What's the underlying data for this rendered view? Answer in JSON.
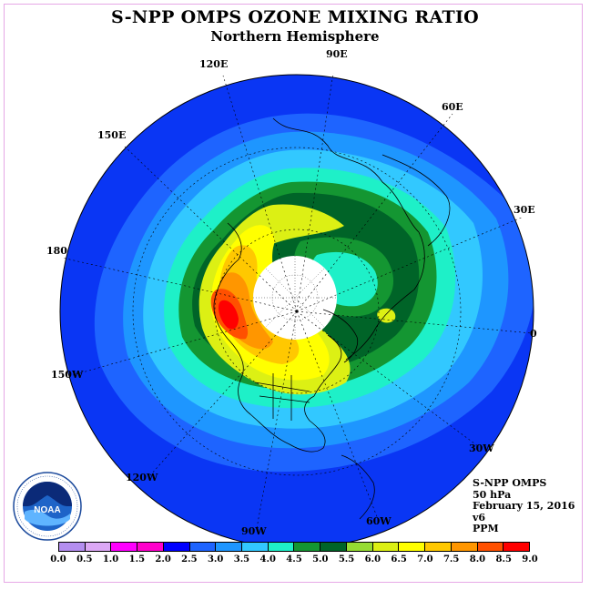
{
  "title": "S-NPP OMPS OZONE MIXING RATIO",
  "subtitle": "Northern Hemisphere",
  "longitude_labels": [
    "120E",
    "90E",
    "60E",
    "150E",
    "30E",
    "180",
    "0",
    "150W",
    "30W",
    "120W",
    "60W",
    "90W"
  ],
  "info": {
    "instrument": "S-NPP OMPS",
    "level": "50 hPa",
    "date": "February 15, 2016",
    "version": "v6",
    "units": "PPM"
  },
  "logo": {
    "text": "NOAA",
    "icon": "noaa-logo"
  },
  "colorbar": {
    "ticks": [
      "0.0",
      "0.5",
      "1.0",
      "1.5",
      "2.0",
      "2.5",
      "3.0",
      "3.5",
      "4.0",
      "4.5",
      "5.0",
      "5.5",
      "6.0",
      "6.5",
      "7.0",
      "7.5",
      "8.0",
      "8.5",
      "9.0"
    ],
    "colors": [
      "#b48ef0",
      "#dca8f5",
      "#ff00ff",
      "#ff00cc",
      "#0000ff",
      "#1e64ff",
      "#1e96ff",
      "#32c8ff",
      "#1ef0c8",
      "#149632",
      "#006428",
      "#96dc32",
      "#dcf014",
      "#ffff00",
      "#ffc800",
      "#ff9600",
      "#ff5000",
      "#ff0000",
      "#8c5032"
    ]
  },
  "map_colors": {
    "ocean_outer": "#0a36f4",
    "ring_2_5": "#1e64ff",
    "ring_3_0": "#1e96ff",
    "ring_3_5": "#32c8ff",
    "band_4_0": "#1ef0c8",
    "band_4_5": "#149632",
    "band_5_0": "#006428",
    "hot_6_0": "#dcf014",
    "hot_6_5": "#ffff00",
    "hot_7_0": "#ffc800",
    "hot_7_5": "#ff9600",
    "hot_8_0": "#ff5000",
    "hot_8_5": "#ff0000",
    "polar_cap": "#ffffff"
  }
}
